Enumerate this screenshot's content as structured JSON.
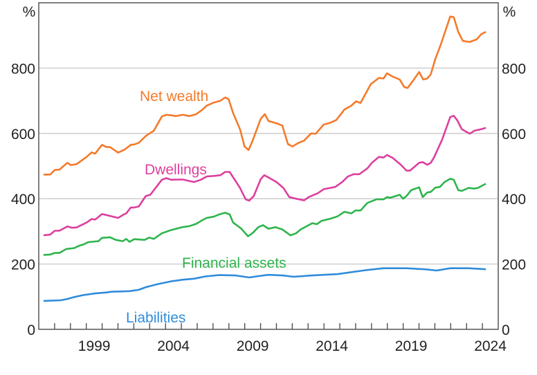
{
  "chart_data": {
    "type": "line",
    "title": "",
    "xlabel": "",
    "ylabel": "%",
    "ylabel_right": "%",
    "xlim": [
      1996,
      2025
    ],
    "ylim": [
      0,
      1000
    ],
    "y_ticks": [
      0,
      200,
      400,
      600,
      800
    ],
    "y_tick_labels": [
      "0",
      "200",
      "400",
      "600",
      "800"
    ],
    "x_tick_labels": [
      "1999",
      "2004",
      "2009",
      "2014",
      "2019",
      "2024"
    ],
    "grid": true,
    "legend": "inline labels",
    "series": [
      {
        "name": "Net wealth",
        "color": "#f47a2a",
        "points": [
          [
            1996.3,
            474
          ],
          [
            1996.72,
            474
          ],
          [
            1997.01,
            488
          ],
          [
            1997.3,
            489
          ],
          [
            1997.81,
            510
          ],
          [
            1998.03,
            503
          ],
          [
            1998.39,
            506
          ],
          [
            1999.02,
            528
          ],
          [
            1999.34,
            542
          ],
          [
            1999.56,
            538
          ],
          [
            1999.99,
            565
          ],
          [
            2000.28,
            558
          ],
          [
            2000.5,
            558
          ],
          [
            2001.01,
            541
          ],
          [
            2001.44,
            551
          ],
          [
            2001.81,
            565
          ],
          [
            2002.02,
            566
          ],
          [
            2002.31,
            571
          ],
          [
            2002.75,
            592
          ],
          [
            2003.26,
            608
          ],
          [
            2003.77,
            652
          ],
          [
            2004.06,
            657
          ],
          [
            2004.42,
            655
          ],
          [
            2004.64,
            653
          ],
          [
            2005.07,
            657
          ],
          [
            2005.51,
            653
          ],
          [
            2005.94,
            659
          ],
          [
            2006.31,
            672
          ],
          [
            2006.6,
            685
          ],
          [
            2007.03,
            694
          ],
          [
            2007.47,
            700
          ],
          [
            2007.76,
            710
          ],
          [
            2007.98,
            705
          ],
          [
            2008.27,
            662
          ],
          [
            2008.7,
            613
          ],
          [
            2008.99,
            560
          ],
          [
            2009.24,
            549
          ],
          [
            2009.5,
            578
          ],
          [
            2010.01,
            645
          ],
          [
            2010.27,
            659
          ],
          [
            2010.5,
            638
          ],
          [
            2011.01,
            631
          ],
          [
            2011.37,
            624
          ],
          [
            2011.73,
            567
          ],
          [
            2012.02,
            560
          ],
          [
            2012.39,
            571
          ],
          [
            2012.75,
            578
          ],
          [
            2013.19,
            600
          ],
          [
            2013.48,
            599
          ],
          [
            2013.98,
            627
          ],
          [
            2014.42,
            633
          ],
          [
            2014.78,
            641
          ],
          [
            2015.29,
            673
          ],
          [
            2015.73,
            685
          ],
          [
            2016.02,
            698
          ],
          [
            2016.31,
            693
          ],
          [
            2016.96,
            751
          ],
          [
            2017.47,
            770
          ],
          [
            2017.76,
            768
          ],
          [
            2017.98,
            784
          ],
          [
            2018.34,
            774
          ],
          [
            2018.78,
            765
          ],
          [
            2019.07,
            742
          ],
          [
            2019.28,
            739
          ],
          [
            2019.57,
            758
          ],
          [
            2020.01,
            788
          ],
          [
            2020.26,
            765
          ],
          [
            2020.52,
            768
          ],
          [
            2020.74,
            781
          ],
          [
            2021.03,
            828
          ],
          [
            2021.39,
            874
          ],
          [
            2021.97,
            958
          ],
          [
            2022.19,
            956
          ],
          [
            2022.48,
            910
          ],
          [
            2022.77,
            883
          ],
          [
            2023.2,
            880
          ],
          [
            2023.64,
            888
          ],
          [
            2023.93,
            904
          ],
          [
            2024.22,
            911
          ]
        ]
      },
      {
        "name": "Dwellings",
        "color": "#dd3f9e",
        "points": [
          [
            1996.3,
            288
          ],
          [
            1996.72,
            290
          ],
          [
            1997.01,
            302
          ],
          [
            1997.3,
            302
          ],
          [
            1997.81,
            315
          ],
          [
            1998.1,
            311
          ],
          [
            1998.39,
            312
          ],
          [
            1999.02,
            327
          ],
          [
            1999.34,
            338
          ],
          [
            1999.56,
            336
          ],
          [
            1999.99,
            353
          ],
          [
            2000.43,
            348
          ],
          [
            2001.01,
            341
          ],
          [
            2001.37,
            352
          ],
          [
            2001.52,
            355
          ],
          [
            2001.81,
            373
          ],
          [
            2002.02,
            373
          ],
          [
            2002.31,
            376
          ],
          [
            2002.75,
            408
          ],
          [
            2003.04,
            412
          ],
          [
            2003.77,
            458
          ],
          [
            2004.06,
            463
          ],
          [
            2004.35,
            458
          ],
          [
            2005.07,
            459
          ],
          [
            2005.8,
            451
          ],
          [
            2006.23,
            458
          ],
          [
            2006.6,
            468
          ],
          [
            2007.1,
            470
          ],
          [
            2007.47,
            472
          ],
          [
            2007.76,
            482
          ],
          [
            2008.05,
            482
          ],
          [
            2008.7,
            433
          ],
          [
            2009.06,
            398
          ],
          [
            2009.28,
            394
          ],
          [
            2009.57,
            408
          ],
          [
            2010.01,
            460
          ],
          [
            2010.23,
            472
          ],
          [
            2010.5,
            465
          ],
          [
            2011.01,
            451
          ],
          [
            2011.44,
            433
          ],
          [
            2011.81,
            405
          ],
          [
            2012.24,
            400
          ],
          [
            2012.75,
            395
          ],
          [
            2013.04,
            405
          ],
          [
            2013.62,
            417
          ],
          [
            2013.98,
            429
          ],
          [
            2014.71,
            436
          ],
          [
            2015.15,
            451
          ],
          [
            2015.51,
            468
          ],
          [
            2015.87,
            475
          ],
          [
            2016.23,
            475
          ],
          [
            2016.74,
            493
          ],
          [
            2017.03,
            510
          ],
          [
            2017.47,
            528
          ],
          [
            2017.76,
            526
          ],
          [
            2017.98,
            534
          ],
          [
            2018.34,
            525
          ],
          [
            2018.85,
            504
          ],
          [
            2019.21,
            486
          ],
          [
            2019.43,
            486
          ],
          [
            2020.01,
            510
          ],
          [
            2020.23,
            512
          ],
          [
            2020.52,
            504
          ],
          [
            2020.74,
            510
          ],
          [
            2020.95,
            527
          ],
          [
            2021.46,
            581
          ],
          [
            2021.97,
            650
          ],
          [
            2022.19,
            654
          ],
          [
            2022.4,
            641
          ],
          [
            2022.7,
            613
          ],
          [
            2023.2,
            599
          ],
          [
            2023.49,
            608
          ],
          [
            2023.93,
            613
          ],
          [
            2024.22,
            617
          ]
        ]
      },
      {
        "name": "Financial assets",
        "color": "#2eb44c",
        "points": [
          [
            1996.3,
            228
          ],
          [
            1996.72,
            229
          ],
          [
            1997.01,
            234
          ],
          [
            1997.3,
            234
          ],
          [
            1997.74,
            246
          ],
          [
            1998.25,
            249
          ],
          [
            1998.54,
            256
          ],
          [
            1998.83,
            260
          ],
          [
            1999.12,
            267
          ],
          [
            1999.56,
            269
          ],
          [
            1999.77,
            270
          ],
          [
            1999.99,
            280
          ],
          [
            2000.5,
            282
          ],
          [
            2000.86,
            274
          ],
          [
            2001.3,
            270
          ],
          [
            2001.52,
            277
          ],
          [
            2001.73,
            268
          ],
          [
            2002.02,
            276
          ],
          [
            2002.68,
            274
          ],
          [
            2002.97,
            281
          ],
          [
            2003.26,
            277
          ],
          [
            2003.77,
            294
          ],
          [
            2004.35,
            304
          ],
          [
            2005.07,
            313
          ],
          [
            2005.51,
            316
          ],
          [
            2005.94,
            323
          ],
          [
            2006.31,
            334
          ],
          [
            2006.6,
            341
          ],
          [
            2007.03,
            345
          ],
          [
            2007.39,
            352
          ],
          [
            2007.76,
            357
          ],
          [
            2008.05,
            352
          ],
          [
            2008.27,
            327
          ],
          [
            2008.77,
            309
          ],
          [
            2009.21,
            285
          ],
          [
            2009.5,
            295
          ],
          [
            2009.86,
            313
          ],
          [
            2010.15,
            319
          ],
          [
            2010.5,
            308
          ],
          [
            2010.94,
            313
          ],
          [
            2011.37,
            306
          ],
          [
            2011.88,
            288
          ],
          [
            2012.24,
            294
          ],
          [
            2012.53,
            306
          ],
          [
            2013.26,
            325
          ],
          [
            2013.55,
            322
          ],
          [
            2013.84,
            332
          ],
          [
            2014.42,
            339
          ],
          [
            2014.86,
            346
          ],
          [
            2015.29,
            360
          ],
          [
            2015.73,
            355
          ],
          [
            2015.99,
            364
          ],
          [
            2016.31,
            364
          ],
          [
            2016.74,
            387
          ],
          [
            2017.32,
            398
          ],
          [
            2017.76,
            398
          ],
          [
            2017.98,
            405
          ],
          [
            2018.19,
            403
          ],
          [
            2018.78,
            412
          ],
          [
            2018.99,
            400
          ],
          [
            2019.21,
            408
          ],
          [
            2019.5,
            426
          ],
          [
            2020.01,
            435
          ],
          [
            2020.23,
            405
          ],
          [
            2020.52,
            419
          ],
          [
            2020.74,
            421
          ],
          [
            2021.03,
            434
          ],
          [
            2021.32,
            436
          ],
          [
            2021.61,
            451
          ],
          [
            2021.97,
            461
          ],
          [
            2022.19,
            458
          ],
          [
            2022.48,
            426
          ],
          [
            2022.7,
            424
          ],
          [
            2023.13,
            433
          ],
          [
            2023.49,
            431
          ],
          [
            2023.71,
            433
          ],
          [
            2024.22,
            446
          ]
        ]
      },
      {
        "name": "Liabilities",
        "color": "#2f8cda",
        "points": [
          [
            1996.3,
            87
          ],
          [
            1997.38,
            89
          ],
          [
            1997.81,
            93
          ],
          [
            1998.25,
            99
          ],
          [
            1998.83,
            105
          ],
          [
            1999.56,
            110
          ],
          [
            2000.28,
            113
          ],
          [
            2000.57,
            115
          ],
          [
            2001.73,
            117
          ],
          [
            2002.31,
            121
          ],
          [
            2002.75,
            129
          ],
          [
            2003.47,
            138
          ],
          [
            2004.35,
            147
          ],
          [
            2005.07,
            152
          ],
          [
            2005.8,
            155
          ],
          [
            2006.52,
            162
          ],
          [
            2007.39,
            166
          ],
          [
            2008.41,
            165
          ],
          [
            2009.28,
            159
          ],
          [
            2010.01,
            164
          ],
          [
            2010.5,
            167
          ],
          [
            2011.37,
            165
          ],
          [
            2012.1,
            161
          ],
          [
            2013.26,
            165
          ],
          [
            2014.86,
            169
          ],
          [
            2016.6,
            181
          ],
          [
            2017.76,
            187
          ],
          [
            2019.21,
            187
          ],
          [
            2020.37,
            184
          ],
          [
            2021.1,
            180
          ],
          [
            2021.97,
            187
          ],
          [
            2023.13,
            187
          ],
          [
            2024.22,
            184
          ]
        ]
      }
    ]
  }
}
